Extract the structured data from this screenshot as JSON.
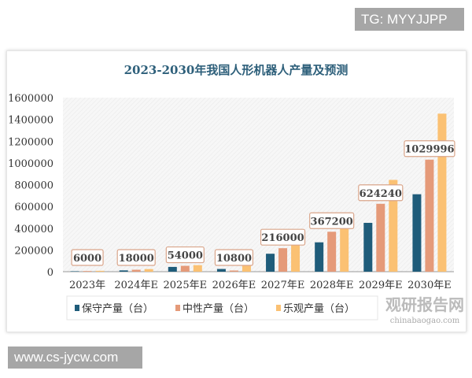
{
  "overlay": {
    "top_right_label": "TG: MYYJJPP",
    "bottom_left_label": "www.cs-jycw.com"
  },
  "watermark": {
    "brand": "观研报告网",
    "url": "chinabaogao.com"
  },
  "chart_data": {
    "type": "bar",
    "title": "2023-2030年我国人形机器人产量及预测",
    "categories": [
      "2023年",
      "2024年E",
      "2025年E",
      "2026年E",
      "2027年E",
      "2028年E",
      "2029年E",
      "2030年E"
    ],
    "series": [
      {
        "name": "保守产量（台）",
        "color": "#1f5c7a",
        "values": [
          4000,
          12000,
          44000,
          25000,
          165000,
          270000,
          449000,
          712000
        ]
      },
      {
        "name": "中性产量（台）",
        "color": "#e59a79",
        "values": [
          6000,
          18000,
          54000,
          10800,
          216000,
          367200,
          624240,
          1029996
        ]
      },
      {
        "name": "乐观产量（台）",
        "color": "#fbc173",
        "values": [
          8000,
          24000,
          60000,
          125000,
          260000,
          440000,
          844000,
          1453000
        ]
      }
    ],
    "data_labels": [
      "6000",
      "18000",
      "54000",
      "10800",
      "216000",
      "367200",
      "624240",
      "1029996"
    ],
    "yticks": [
      "0",
      "200000",
      "400000",
      "600000",
      "800000",
      "1000000",
      "1200000",
      "1400000",
      "1600000"
    ],
    "ylim": [
      0,
      1600000
    ],
    "grid": false,
    "legend": "bottom"
  }
}
